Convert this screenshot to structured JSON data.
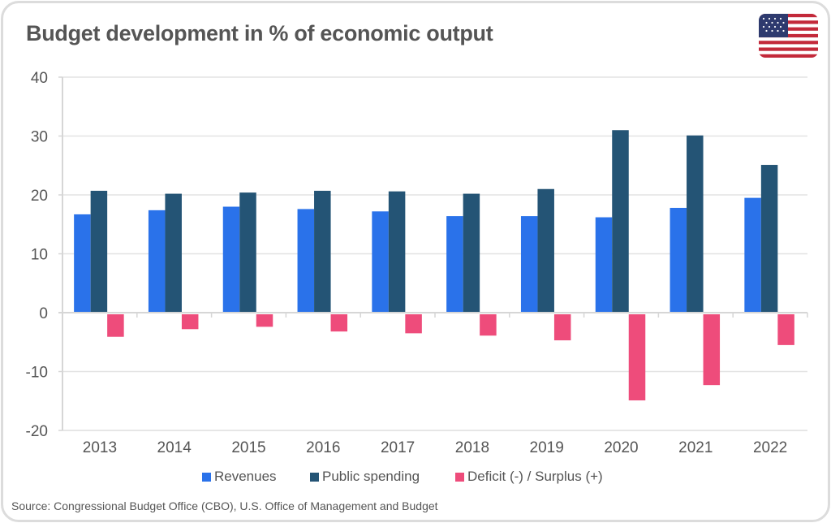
{
  "header": {
    "title": "Budget development in % of economic output",
    "flag_icon": "us-flag-icon"
  },
  "colors": {
    "revenues": "#2a72ea",
    "public_spending": "#245475",
    "deficit": "#ee4c7b",
    "grid": "#e3e3e3",
    "axis": "#d6d6d6",
    "text": "#555555"
  },
  "chart_data": {
    "type": "bar",
    "title": "Budget development in % of economic output",
    "xlabel": "",
    "ylabel": "",
    "categories": [
      "2013",
      "2014",
      "2015",
      "2016",
      "2017",
      "2018",
      "2019",
      "2020",
      "2021",
      "2022"
    ],
    "series": [
      {
        "name": "Revenues",
        "color": "#2a72ea",
        "values": [
          16.7,
          17.4,
          18.0,
          17.6,
          17.2,
          16.4,
          16.4,
          16.2,
          17.8,
          19.5
        ]
      },
      {
        "name": "Public spending",
        "color": "#245475",
        "values": [
          20.7,
          20.2,
          20.4,
          20.7,
          20.6,
          20.2,
          21.0,
          31.0,
          30.1,
          25.1
        ]
      },
      {
        "name": "Deficit (-) / Surplus (+)",
        "color": "#ee4c7b",
        "values": [
          -4.1,
          -2.8,
          -2.4,
          -3.2,
          -3.5,
          -3.9,
          -4.7,
          -14.9,
          -12.3,
          -5.5
        ]
      }
    ],
    "ylim": [
      -20,
      40
    ],
    "yticks": [
      "40",
      "30",
      "20",
      "10",
      "0",
      "-10",
      "-20"
    ],
    "ytick_values": [
      40,
      30,
      20,
      10,
      0,
      -10,
      -20
    ],
    "grid": true,
    "legend_position": "bottom-center"
  },
  "legend": {
    "items": [
      {
        "label": "Revenues",
        "color": "#2a72ea"
      },
      {
        "label": "Public spending",
        "color": "#245475"
      },
      {
        "label": "Deficit (-) / Surplus (+)",
        "color": "#ee4c7b"
      }
    ]
  },
  "footer": {
    "source": "Source: Congressional Budget Office (CBO), U.S. Office of Management and Budget"
  }
}
